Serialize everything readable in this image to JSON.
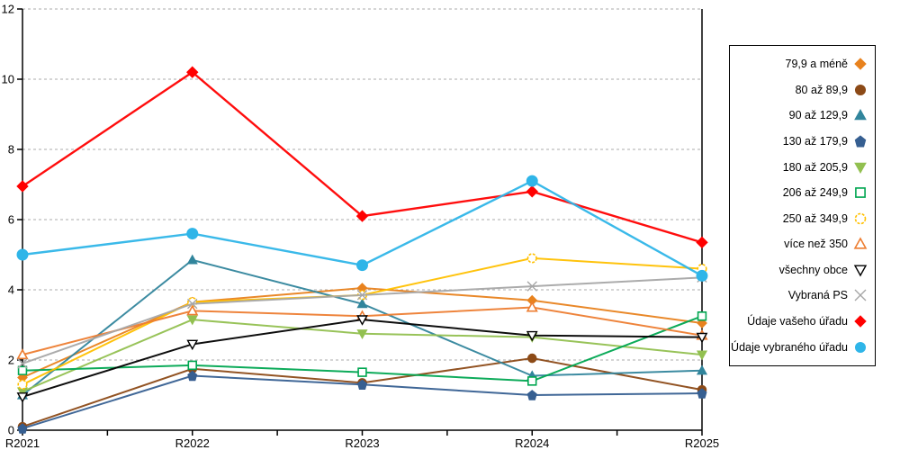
{
  "chart_data": {
    "type": "line",
    "title": "",
    "xlabel": "",
    "ylabel": "",
    "x_categories": [
      "R2021",
      "R2022",
      "R2023",
      "R2024",
      "R2025"
    ],
    "ylim": [
      0,
      12
    ],
    "yticks": [
      0,
      2,
      4,
      6,
      8,
      10,
      12
    ],
    "ytick_labels": [
      "0",
      "2",
      "4",
      "6",
      "8",
      "10",
      "12"
    ],
    "grid": "horizontal dashed gridlines at each ytick",
    "legend_position": "right",
    "minor_x_ticks_between_labels": true,
    "series": [
      {
        "name": "79,9 a méně",
        "marker": "diamond",
        "fill": "solid",
        "color": "#E8821E",
        "values": [
          1.5,
          3.65,
          4.05,
          3.7,
          3.05
        ]
      },
      {
        "name": "80 až 89,9",
        "marker": "circle",
        "fill": "solid",
        "color": "#8C4A17",
        "values": [
          0.1,
          1.75,
          1.35,
          2.05,
          1.15
        ]
      },
      {
        "name": "90 až 129,9",
        "marker": "triangle-up",
        "fill": "solid",
        "color": "#31859C",
        "values": [
          1.0,
          4.85,
          3.6,
          1.55,
          1.7
        ]
      },
      {
        "name": "130 až 179,9",
        "marker": "pentagon",
        "fill": "solid",
        "color": "#365F91",
        "values": [
          0.05,
          1.55,
          1.3,
          1.0,
          1.05
        ]
      },
      {
        "name": "180 až 205,9",
        "marker": "triangle-down",
        "fill": "solid",
        "color": "#92C050",
        "values": [
          1.1,
          3.15,
          2.75,
          2.65,
          2.15
        ]
      },
      {
        "name": "206 až 249,9",
        "marker": "square",
        "fill": "hollow",
        "color": "#00A651",
        "values": [
          1.7,
          1.85,
          1.65,
          1.4,
          3.25
        ]
      },
      {
        "name": "250 až 349,9",
        "marker": "circle",
        "fill": "hollow",
        "color": "#FFC000",
        "values": [
          1.3,
          3.65,
          3.85,
          4.9,
          4.6
        ]
      },
      {
        "name": "více než 350",
        "marker": "triangle-up",
        "fill": "hollow",
        "color": "#ED7D31",
        "values": [
          2.15,
          3.4,
          3.25,
          3.5,
          2.7
        ]
      },
      {
        "name": "všechny obce",
        "marker": "triangle-down",
        "fill": "hollow",
        "color": "#000000",
        "values": [
          0.95,
          2.45,
          3.15,
          2.7,
          2.65
        ]
      },
      {
        "name": "Vybraná PS",
        "marker": "x",
        "fill": "line",
        "color": "#A6A6A6",
        "values": [
          1.9,
          3.6,
          3.85,
          4.1,
          4.35
        ]
      },
      {
        "name": "Údaje vašeho úřadu",
        "marker": "diamond",
        "fill": "solid",
        "color": "#FF0000",
        "values": [
          6.95,
          10.2,
          6.1,
          6.8,
          5.35
        ]
      },
      {
        "name": "Údaje vybraného úřadu",
        "marker": "circle",
        "fill": "solid",
        "color": "#2FB5E8",
        "values": [
          5.0,
          5.6,
          4.7,
          7.1,
          4.4
        ]
      }
    ],
    "colors": {
      "axis": "#000000",
      "gridline": "#ABABAB",
      "background": "#FFFFFF"
    }
  }
}
